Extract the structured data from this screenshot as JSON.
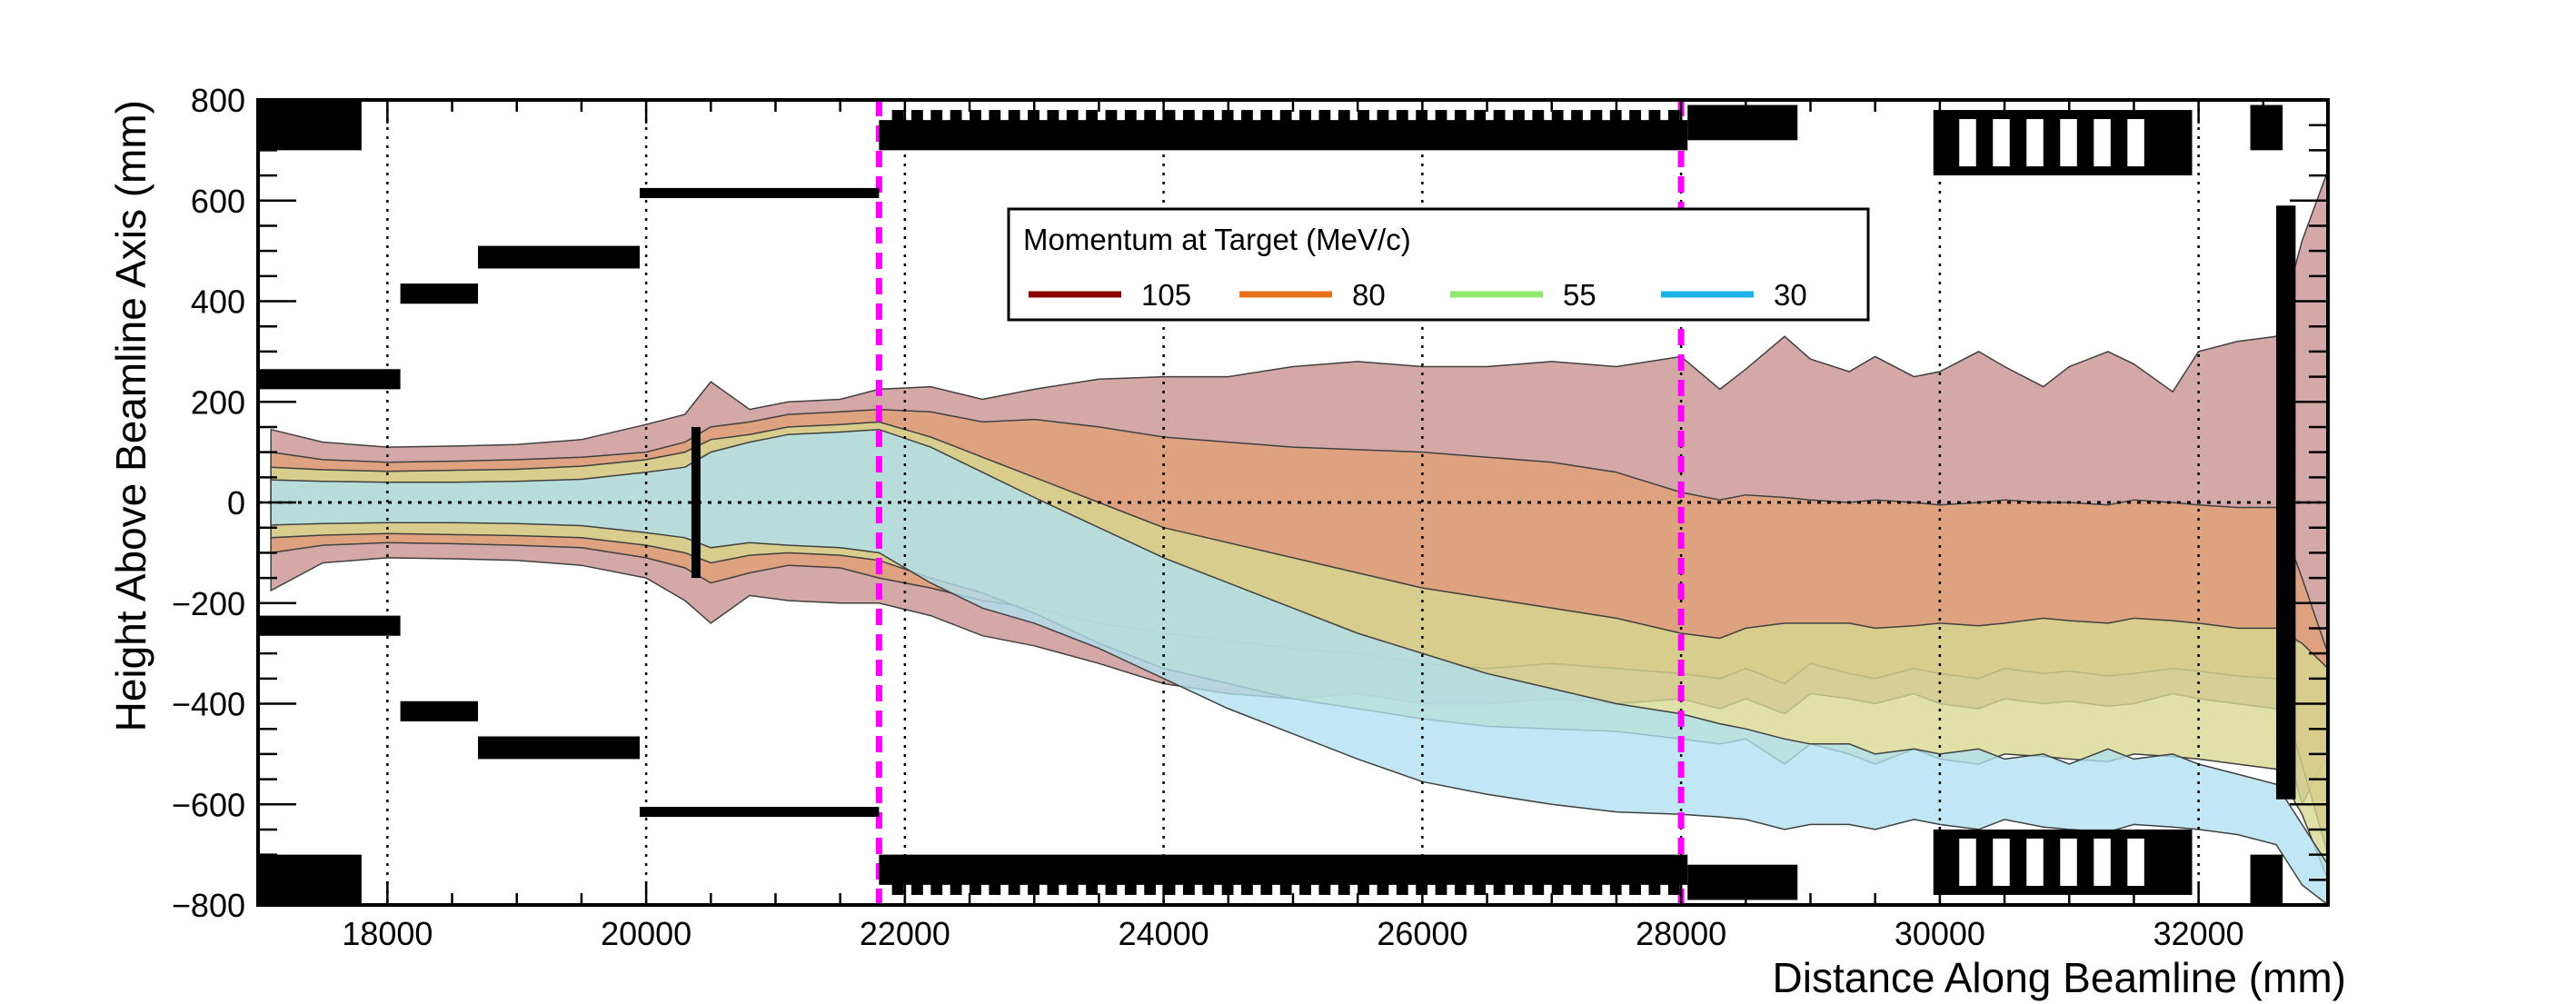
{
  "chart_data": {
    "type": "area",
    "title": "",
    "xlabel": "Distance Along Beamline (mm)",
    "ylabel": "Height Above Beamline Axis (mm)",
    "xlim": [
      17000,
      33000
    ],
    "ylim": [
      -800,
      800
    ],
    "x_ticks": [
      18000,
      20000,
      22000,
      24000,
      26000,
      28000,
      30000,
      32000
    ],
    "x_tick_labels": [
      "18000",
      "20000",
      "22000",
      "24000",
      "26000",
      "28000",
      "30000",
      "32000"
    ],
    "y_ticks": [
      -800,
      -600,
      -400,
      -200,
      0,
      200,
      400,
      600,
      800
    ],
    "y_tick_labels": [
      "−800",
      "−600",
      "−400",
      "−200",
      "0",
      "200",
      "400",
      "600",
      "800"
    ],
    "grid": "dotted vertical lines at major x ticks; dotted horizontal line at y=0",
    "legend": {
      "title": "Momentum at Target (MeV/c)",
      "placement": "top-center",
      "entries": [
        "105",
        "80",
        "55",
        "30"
      ]
    },
    "series": [
      {
        "name": "105",
        "line_color": "#8b0000",
        "fill_color": "#c99090",
        "x": [
          17100,
          17500,
          18000,
          18500,
          19000,
          19500,
          20000,
          20300,
          20500,
          20800,
          21100,
          21500,
          21800,
          22200,
          22600,
          23000,
          23500,
          24000,
          24500,
          25000,
          25500,
          26000,
          26500,
          27000,
          27500,
          28000,
          28300,
          28500,
          28800,
          29000,
          29300,
          29500,
          29800,
          30000,
          30300,
          30500,
          30800,
          31000,
          31300,
          31500,
          31800,
          32000,
          32300,
          32600,
          32800,
          33000
        ],
        "upper": [
          145,
          120,
          110,
          112,
          115,
          125,
          155,
          175,
          240,
          185,
          200,
          205,
          225,
          230,
          205,
          225,
          245,
          250,
          250,
          270,
          280,
          270,
          270,
          280,
          270,
          290,
          225,
          265,
          330,
          285,
          260,
          290,
          250,
          260,
          300,
          270,
          230,
          270,
          300,
          275,
          220,
          300,
          320,
          330,
          520,
          660
        ],
        "lower": [
          -175,
          -120,
          -110,
          -112,
          -115,
          -125,
          -150,
          -195,
          -240,
          -185,
          -195,
          -200,
          -200,
          -225,
          -265,
          -285,
          -320,
          -360,
          -380,
          -390,
          -380,
          -400,
          -400,
          -390,
          -400,
          -390,
          -410,
          -390,
          -420,
          -380,
          -390,
          -400,
          -380,
          -400,
          -410,
          -390,
          -400,
          -395,
          -405,
          -400,
          -380,
          -390,
          -400,
          -410,
          -600,
          -500
        ]
      },
      {
        "name": "80",
        "line_color": "#e8701a",
        "fill_color": "#e0a075",
        "x": [
          17100,
          17500,
          18000,
          18500,
          19000,
          19500,
          20000,
          20300,
          20500,
          20800,
          21100,
          21500,
          21800,
          22200,
          22600,
          23000,
          23500,
          24000,
          24500,
          25000,
          25500,
          26000,
          26500,
          27000,
          27500,
          28000,
          28300,
          28500,
          28800,
          29000,
          29300,
          29500,
          29800,
          30000,
          30300,
          30500,
          30800,
          31000,
          31300,
          31500,
          31800,
          32000,
          32300,
          32600,
          32800,
          33000
        ],
        "upper": [
          100,
          85,
          80,
          82,
          85,
          90,
          100,
          120,
          150,
          160,
          175,
          180,
          185,
          180,
          160,
          165,
          150,
          130,
          120,
          110,
          105,
          100,
          90,
          80,
          60,
          20,
          5,
          15,
          10,
          5,
          0,
          5,
          0,
          -5,
          0,
          5,
          0,
          0,
          -5,
          5,
          0,
          -5,
          -10,
          -10,
          -150,
          -300
        ],
        "lower": [
          -100,
          -85,
          -80,
          -82,
          -85,
          -90,
          -110,
          -130,
          -160,
          -140,
          -125,
          -130,
          -150,
          -170,
          -195,
          -210,
          -240,
          -260,
          -275,
          -290,
          -300,
          -320,
          -330,
          -320,
          -330,
          -340,
          -350,
          -330,
          -360,
          -320,
          -340,
          -350,
          -330,
          -340,
          -350,
          -330,
          -340,
          -335,
          -345,
          -340,
          -330,
          -335,
          -345,
          -350,
          -520,
          -700
        ]
      },
      {
        "name": "55",
        "line_color": "#8fe870",
        "fill_color": "#d6d890",
        "x": [
          17100,
          17500,
          18000,
          18500,
          19000,
          19500,
          20000,
          20300,
          20500,
          20800,
          21100,
          21500,
          21800,
          22200,
          22600,
          23000,
          23500,
          24000,
          24500,
          25000,
          25500,
          26000,
          26500,
          27000,
          27500,
          28000,
          28300,
          28500,
          28800,
          29000,
          29300,
          29500,
          29800,
          30000,
          30300,
          30500,
          30800,
          31000,
          31300,
          31500,
          31800,
          32000,
          32300,
          32600,
          32800,
          33000
        ],
        "upper": [
          70,
          65,
          62,
          64,
          66,
          72,
          85,
          100,
          125,
          135,
          150,
          155,
          160,
          130,
          90,
          50,
          0,
          -50,
          -80,
          -110,
          -140,
          -170,
          -190,
          -210,
          -230,
          -260,
          -270,
          -250,
          -240,
          -240,
          -240,
          -250,
          -245,
          -240,
          -245,
          -240,
          -230,
          -235,
          -240,
          -230,
          -235,
          -240,
          -250,
          -250,
          -280,
          -330
        ],
        "lower": [
          -70,
          -65,
          -62,
          -64,
          -66,
          -70,
          -85,
          -100,
          -120,
          -105,
          -100,
          -105,
          -115,
          -150,
          -180,
          -220,
          -280,
          -330,
          -360,
          -390,
          -410,
          -430,
          -445,
          -450,
          -455,
          -470,
          -480,
          -470,
          -520,
          -480,
          -500,
          -520,
          -490,
          -510,
          -520,
          -500,
          -505,
          -510,
          -515,
          -500,
          -505,
          -510,
          -520,
          -530,
          -620,
          -750
        ]
      },
      {
        "name": "30",
        "line_color": "#1ab0e8",
        "fill_color": "#aee0f0",
        "x": [
          17100,
          17500,
          18000,
          18500,
          19000,
          19500,
          20000,
          20300,
          20500,
          20800,
          21100,
          21500,
          21800,
          22200,
          22600,
          23000,
          23500,
          24000,
          24500,
          25000,
          25500,
          26000,
          26500,
          27000,
          27500,
          28000,
          28300,
          28500,
          28800,
          29000,
          29300,
          29500,
          29800,
          30000,
          30300,
          30500,
          30800,
          31000,
          31300,
          31500,
          31800,
          32000,
          32300,
          32600,
          32800,
          33000
        ],
        "upper": [
          45,
          42,
          40,
          40,
          42,
          46,
          60,
          70,
          100,
          120,
          135,
          140,
          145,
          110,
          60,
          10,
          -50,
          -110,
          -160,
          -210,
          -260,
          -300,
          -340,
          -370,
          -400,
          -420,
          -440,
          -450,
          -470,
          -480,
          -480,
          -500,
          -490,
          -500,
          -490,
          -510,
          -500,
          -520,
          -490,
          -510,
          -500,
          -520,
          -540,
          -560,
          -640,
          -720
        ],
        "lower": [
          -45,
          -42,
          -40,
          -40,
          -42,
          -46,
          -60,
          -70,
          -90,
          -80,
          -85,
          -90,
          -100,
          -160,
          -210,
          -240,
          -290,
          -350,
          -410,
          -460,
          -510,
          -555,
          -580,
          -600,
          -615,
          -620,
          -625,
          -630,
          -650,
          -640,
          -640,
          -650,
          -630,
          -640,
          -650,
          -630,
          -645,
          -650,
          -655,
          -640,
          -645,
          -650,
          -660,
          -680,
          -760,
          -800
        ]
      }
    ],
    "annotations": {
      "magenta_dashed_x": [
        21800,
        28000
      ]
    }
  }
}
